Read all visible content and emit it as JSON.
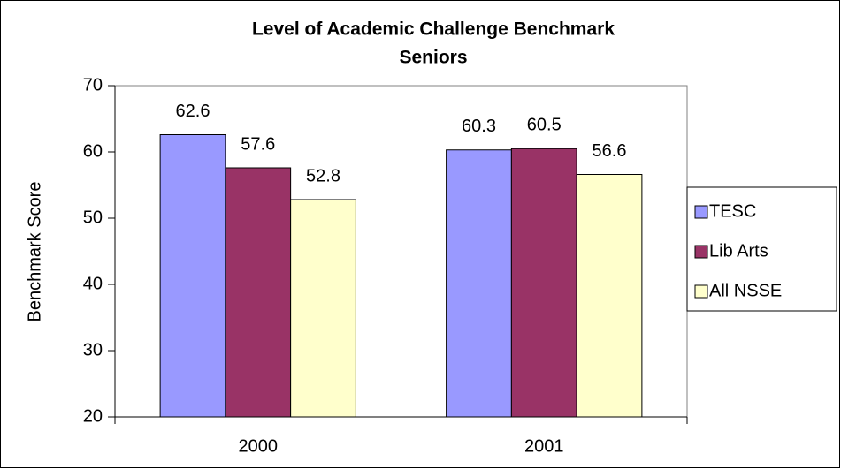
{
  "chart_data": {
    "type": "bar",
    "title": "Level of Academic Challenge Benchmark",
    "subtitle": "Seniors",
    "y_label": "Benchmark Score",
    "categories": [
      "2000",
      "2001"
    ],
    "series": [
      {
        "name": "TESC",
        "color": "#9999ff",
        "values": [
          62.6,
          60.3
        ]
      },
      {
        "name": "Lib Arts",
        "color": "#993366",
        "values": [
          57.6,
          60.5
        ]
      },
      {
        "name": "All NSSE",
        "color": "#ffffcc",
        "values": [
          52.8,
          56.6
        ]
      }
    ],
    "ylim": [
      20,
      70
    ],
    "yticks": [
      20,
      30,
      40,
      50,
      60,
      70
    ],
    "grid": false,
    "legend": "right"
  }
}
